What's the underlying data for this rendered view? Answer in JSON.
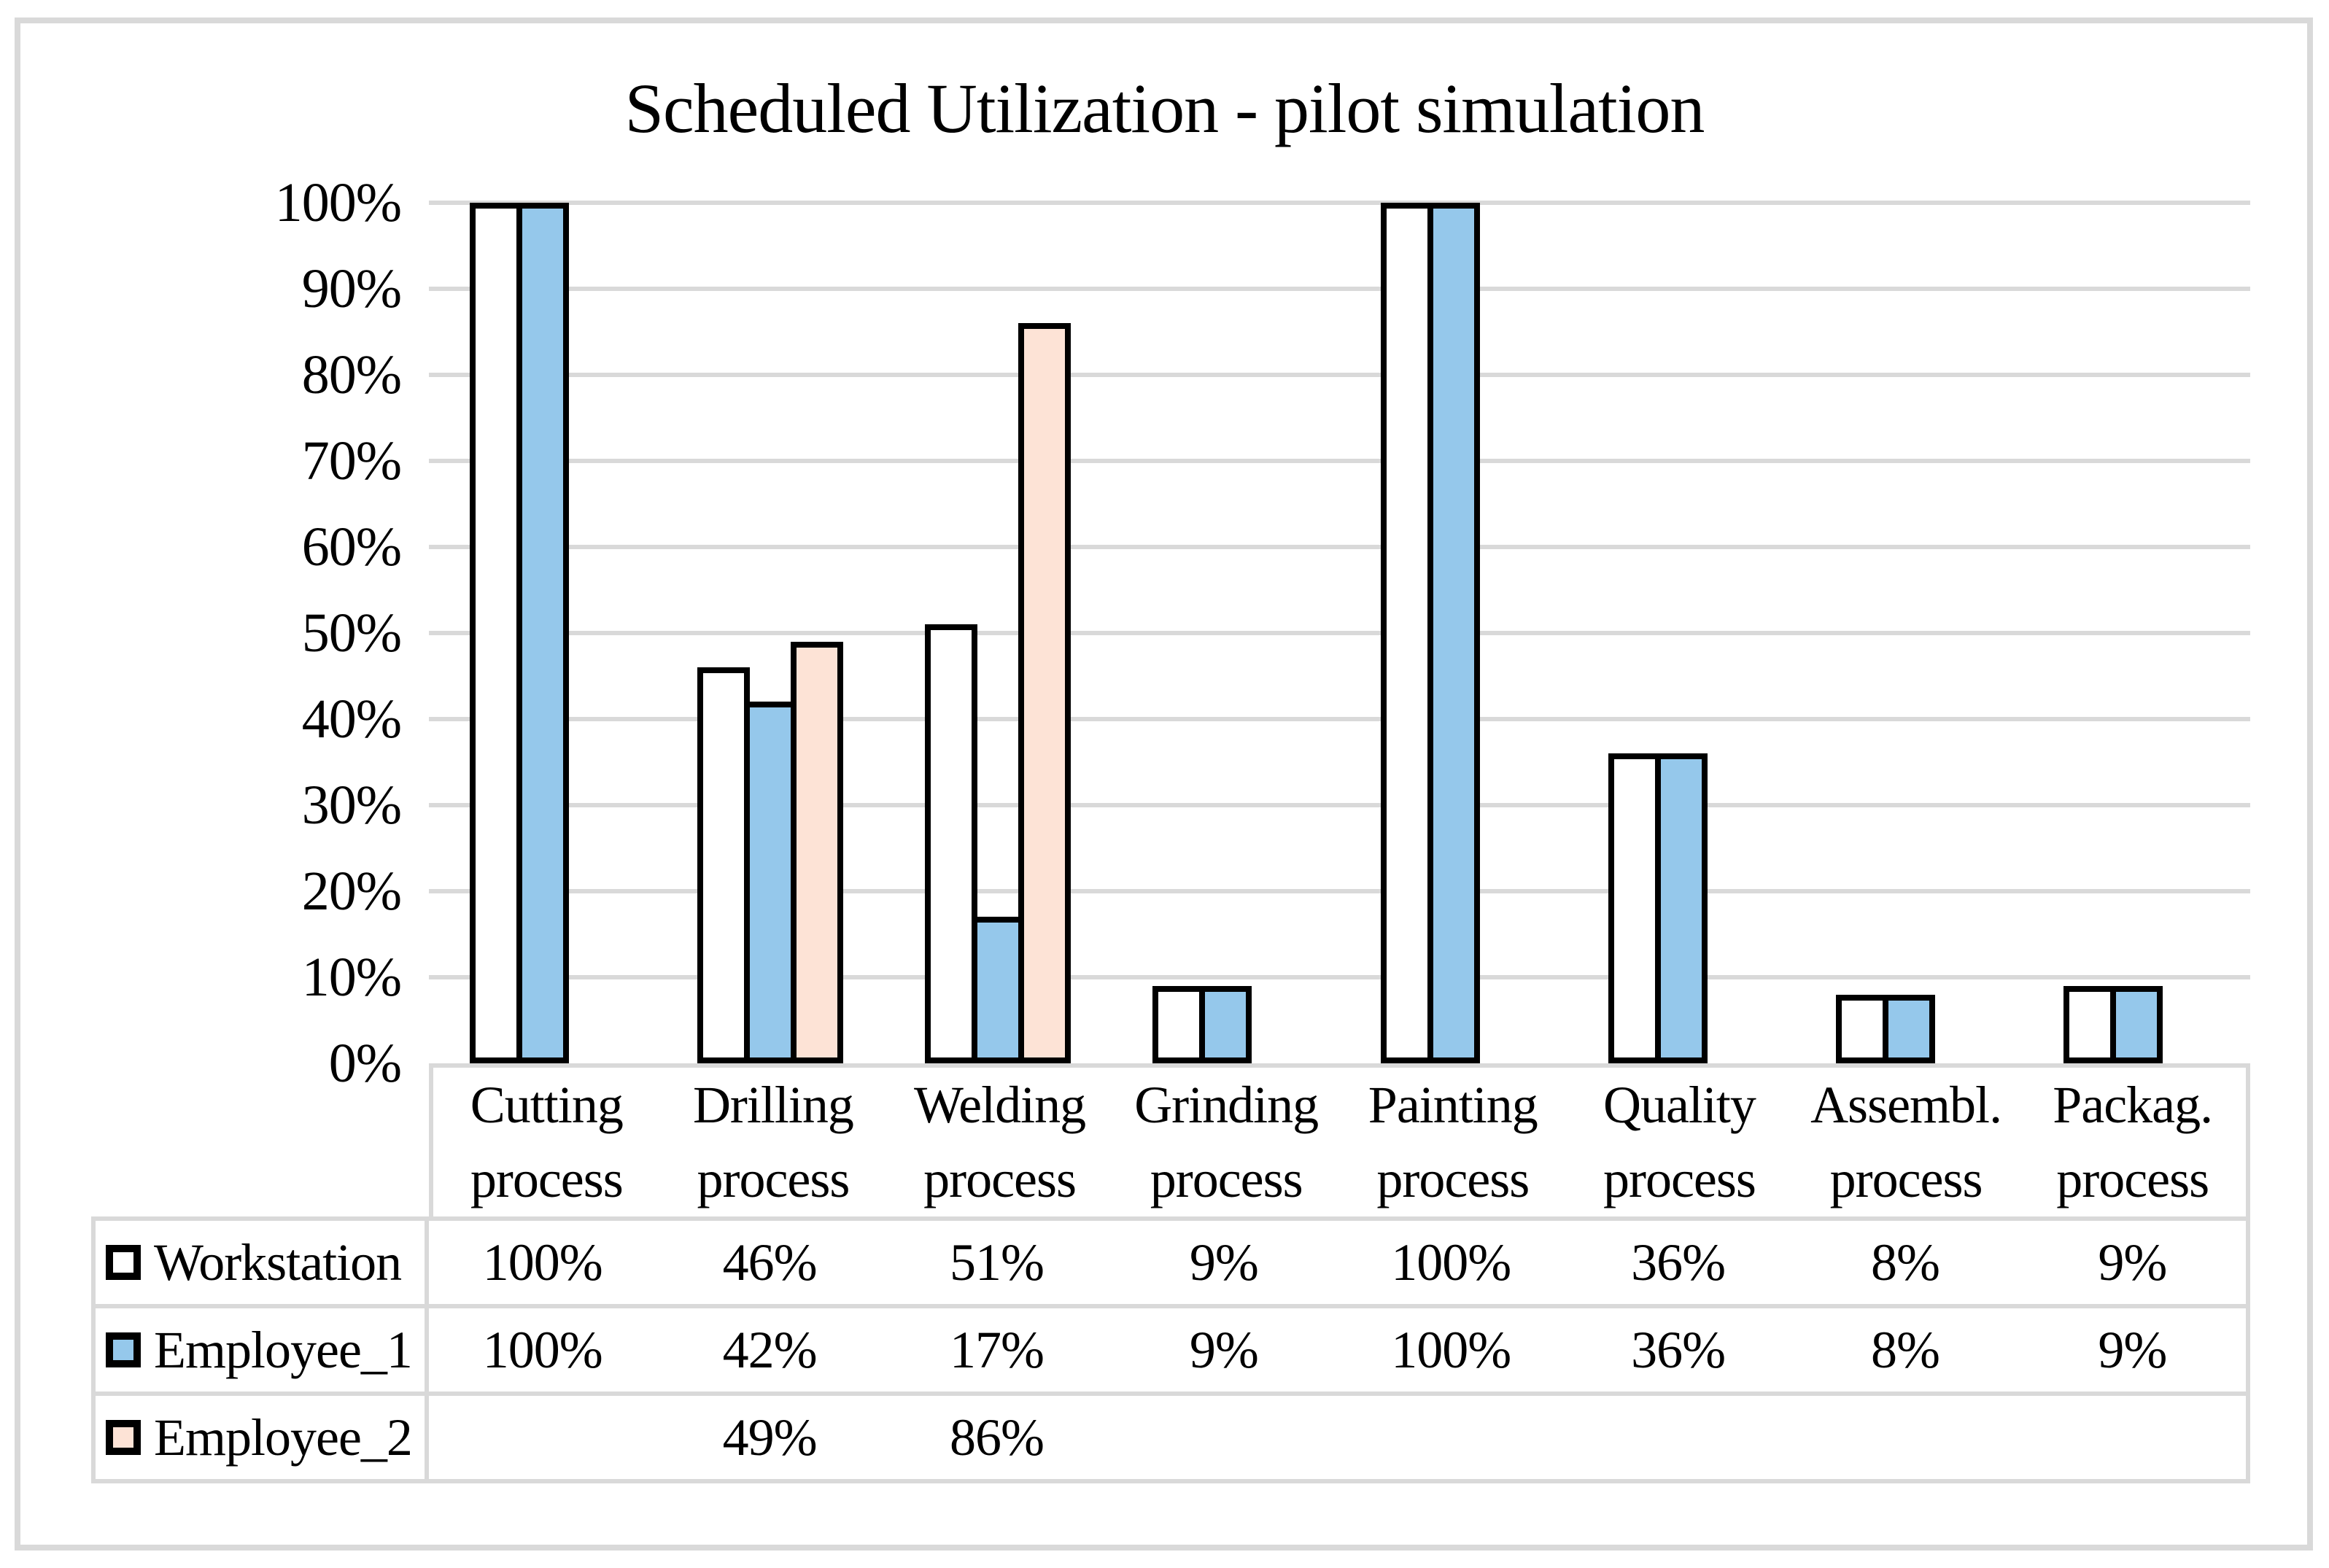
{
  "title": "Scheduled Utilization - pilot simulation",
  "colors": {
    "workstation_fill": "#FFFFFF",
    "employee_1_fill": "#95C8EB",
    "employee_2_fill": "#FDE3D6",
    "bar_border": "#000000",
    "grid": "#D9D9D9"
  },
  "y_axis": {
    "tick_labels": [
      "100%",
      "90%",
      "80%",
      "70%",
      "60%",
      "50%",
      "40%",
      "30%",
      "20%",
      "10%",
      "0%"
    ],
    "min": 0,
    "max": 100,
    "step": 10
  },
  "chart_data": {
    "type": "bar",
    "title": "Scheduled Utilization - pilot simulation",
    "categories": [
      "Cutting process",
      "Drilling process",
      "Welding process",
      "Grinding process",
      "Painting process",
      "Quality process",
      "Assembl. process",
      "Packag. process"
    ],
    "series": [
      {
        "name": "Workstation",
        "color": "#FFFFFF",
        "values": [
          100,
          46,
          51,
          9,
          100,
          36,
          8,
          9
        ]
      },
      {
        "name": "Employee_1",
        "color": "#95C8EB",
        "values": [
          100,
          42,
          17,
          9,
          100,
          36,
          8,
          9
        ]
      },
      {
        "name": "Employee_2",
        "color": "#FDE3D6",
        "values": [
          null,
          49,
          86,
          null,
          null,
          null,
          null,
          null
        ]
      }
    ],
    "xlabel": "",
    "ylabel": "",
    "ylim": [
      0,
      100
    ],
    "ytick_format": "percent",
    "grid": true,
    "legend_position": "table-below"
  },
  "table": {
    "category_lines": [
      [
        "Cutting",
        "process"
      ],
      [
        "Drilling",
        "process"
      ],
      [
        "Welding",
        "process"
      ],
      [
        "Grinding",
        "process"
      ],
      [
        "Painting",
        "process"
      ],
      [
        "Quality",
        "process"
      ],
      [
        "Assembl.",
        "process"
      ],
      [
        "Packag.",
        "process"
      ]
    ],
    "rows": [
      {
        "label": "Workstation",
        "values": [
          "100%",
          "46%",
          "51%",
          "9%",
          "100%",
          "36%",
          "8%",
          "9%"
        ]
      },
      {
        "label": "Employee_1",
        "values": [
          "100%",
          "42%",
          "17%",
          "9%",
          "100%",
          "36%",
          "8%",
          "9%"
        ]
      },
      {
        "label": "Employee_2",
        "values": [
          "",
          "49%",
          "86%",
          "",
          "",
          "",
          "",
          ""
        ]
      }
    ]
  }
}
